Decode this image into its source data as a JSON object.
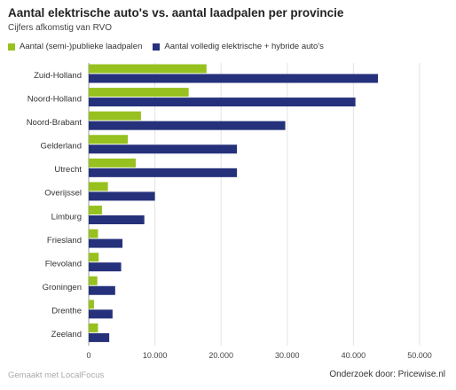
{
  "chart_data": {
    "type": "bar",
    "orientation": "horizontal",
    "title": "Aantal elektrische auto's vs. aantal laadpalen per provincie",
    "subtitle": "Cijfers afkomstig van RVO",
    "categories": [
      "Zuid-Holland",
      "Noord-Holland",
      "Noord-Brabant",
      "Gelderland",
      "Utrecht",
      "Overijssel",
      "Limburg",
      "Friesland",
      "Flevoland",
      "Groningen",
      "Drenthe",
      "Zeeland"
    ],
    "series": [
      {
        "name": "Aantal (semi-)publieke laadpalen",
        "color": "#97c11f",
        "values": [
          17800,
          15100,
          7900,
          5900,
          7100,
          2900,
          2000,
          1400,
          1500,
          1300,
          800,
          1400
        ]
      },
      {
        "name": "Aantal volledig elektrische + hybride auto's",
        "color": "#26317b",
        "values": [
          43700,
          40300,
          29700,
          22400,
          22400,
          10000,
          8400,
          5100,
          4900,
          4000,
          3600,
          3100
        ]
      }
    ],
    "x_ticks": [
      "0",
      "10.000",
      "20.000",
      "30.000",
      "40.000",
      "50.000"
    ],
    "x_tick_values": [
      0,
      10000,
      20000,
      30000,
      40000,
      50000
    ],
    "xlim": [
      0,
      50000
    ],
    "grid": true,
    "legend_position": "top-left"
  },
  "footer": {
    "credit": "Gemaakt met LocalFocus",
    "source": "Onderzoek door: Pricewise.nl"
  }
}
